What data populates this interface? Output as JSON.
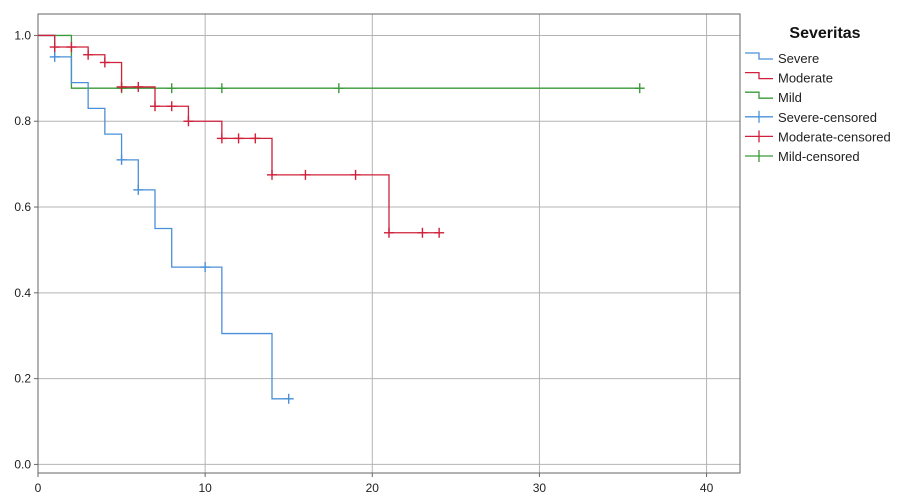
{
  "chart_data": {
    "type": "line",
    "subtype": "kaplan-meier-step",
    "title": "",
    "xlabel": "",
    "ylabel": "",
    "xlim": [
      0,
      42
    ],
    "ylim": [
      -0.02,
      1.05
    ],
    "x_ticks": [
      0,
      10,
      20,
      30,
      40
    ],
    "x_tick_labels": [
      "0",
      "10",
      "20",
      "30",
      "40"
    ],
    "y_ticks": [
      0.0,
      0.2,
      0.4,
      0.6,
      0.8,
      1.0
    ],
    "y_tick_labels": [
      "0.0",
      "0.2",
      "0.4",
      "0.6",
      "0.8",
      "1.0"
    ],
    "grid": true,
    "legend": {
      "title": "Severitas",
      "placement": "right",
      "entries": [
        {
          "label": "Severe",
          "color": "#4a90d9",
          "kind": "step"
        },
        {
          "label": "Moderate",
          "color": "#d0203a",
          "kind": "step"
        },
        {
          "label": "Mild",
          "color": "#3a9a3a",
          "kind": "step"
        },
        {
          "label": "Severe-censored",
          "color": "#4a90d9",
          "kind": "censor"
        },
        {
          "label": "Moderate-censored",
          "color": "#d0203a",
          "kind": "censor"
        },
        {
          "label": "Mild-censored",
          "color": "#3a9a3a",
          "kind": "censor"
        }
      ]
    },
    "series": [
      {
        "name": "Severe",
        "color": "#4a90d9",
        "steps": [
          [
            0,
            1.0
          ],
          [
            1,
            0.95
          ],
          [
            2,
            0.89
          ],
          [
            3,
            0.83
          ],
          [
            4,
            0.77
          ],
          [
            5,
            0.71
          ],
          [
            6,
            0.64
          ],
          [
            7,
            0.55
          ],
          [
            8,
            0.46
          ],
          [
            11,
            0.305
          ],
          [
            14,
            0.153
          ],
          [
            15,
            0.153
          ]
        ],
        "censored": [
          [
            1,
            0.95
          ],
          [
            5,
            0.71
          ],
          [
            6,
            0.64
          ],
          [
            10,
            0.46
          ],
          [
            15,
            0.153
          ]
        ]
      },
      {
        "name": "Moderate",
        "color": "#d0203a",
        "steps": [
          [
            0,
            1.0
          ],
          [
            1,
            0.973
          ],
          [
            2,
            0.973
          ],
          [
            3,
            0.955
          ],
          [
            4,
            0.937
          ],
          [
            5,
            0.88
          ],
          [
            7,
            0.835
          ],
          [
            9,
            0.8
          ],
          [
            11,
            0.76
          ],
          [
            14,
            0.675
          ],
          [
            21,
            0.54
          ],
          [
            24,
            0.54
          ]
        ],
        "censored": [
          [
            1,
            0.973
          ],
          [
            2,
            0.973
          ],
          [
            3,
            0.955
          ],
          [
            4,
            0.937
          ],
          [
            5,
            0.88
          ],
          [
            6,
            0.88
          ],
          [
            7,
            0.835
          ],
          [
            8,
            0.835
          ],
          [
            9,
            0.8
          ],
          [
            11,
            0.76
          ],
          [
            12,
            0.76
          ],
          [
            13,
            0.76
          ],
          [
            14,
            0.675
          ],
          [
            16,
            0.675
          ],
          [
            19,
            0.675
          ],
          [
            21,
            0.54
          ],
          [
            23,
            0.54
          ],
          [
            24,
            0.54
          ]
        ]
      },
      {
        "name": "Mild",
        "color": "#3a9a3a",
        "steps": [
          [
            0,
            1.0
          ],
          [
            2,
            0.877
          ],
          [
            36,
            0.877
          ]
        ],
        "censored": [
          [
            5,
            0.877
          ],
          [
            8,
            0.877
          ],
          [
            11,
            0.877
          ],
          [
            18,
            0.877
          ],
          [
            36,
            0.877
          ]
        ]
      }
    ]
  },
  "colors": {
    "grid": "#b4b4b4",
    "axis": "#666666",
    "background": "#ffffff"
  }
}
